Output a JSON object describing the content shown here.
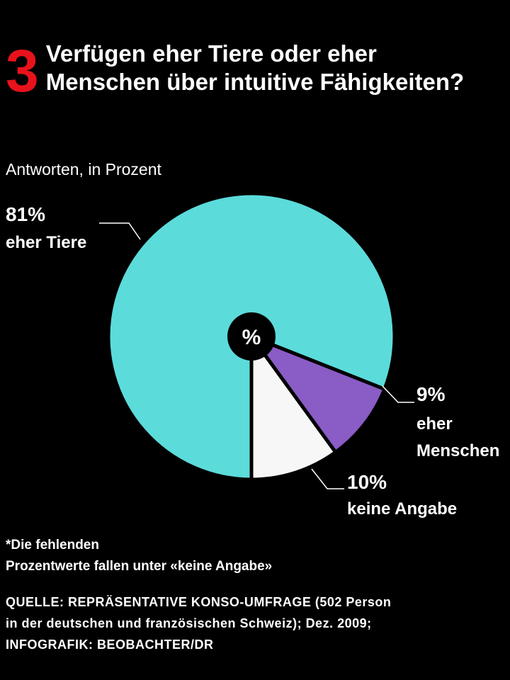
{
  "number": "3",
  "chart_data": {
    "type": "pie",
    "title": "Verfügen eher Tiere oder eher Menschen über intuitive Fähigkeiten?",
    "subtitle": "Antworten, in Prozent",
    "center_label": "%",
    "categories": [
      "eher Tiere",
      "eher Menschen",
      "keine Angabe"
    ],
    "values": [
      81,
      9,
      10
    ],
    "value_labels": [
      "81%",
      "9%",
      "10%"
    ],
    "colors": [
      "#5cdbdb",
      "#8a5cc6",
      "#f7f7f7"
    ]
  },
  "footnote": [
    "*Die fehlenden",
    "Prozentwerte fallen unter «keine Angabe»"
  ],
  "source": [
    "QUELLE: REPRÄSENTATIVE KONSO-UMFRAGE (502 Person",
    "in der deutschen und französischen Schweiz); Dez. 2009;",
    "INFOGRAFIK: BEOBACHTER/DR"
  ]
}
